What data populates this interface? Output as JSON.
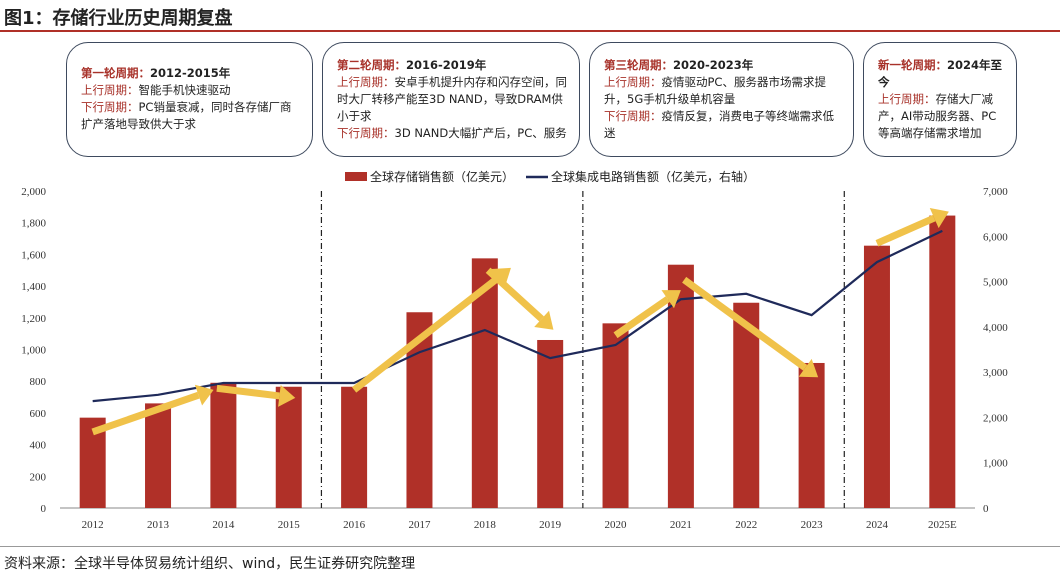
{
  "title": "图1：存储行业历史周期复盘",
  "source": "资料来源：全球半导体贸易统计组织、wind，民生证券研究院整理",
  "boxes": [
    {
      "head": "第一轮周期：",
      "period": "2012-2015年",
      "up_label": "上行周期：",
      "up": "智能手机快速驱动",
      "down_label": "下行周期：",
      "down": "PC销量衰减，同时各存储厂商扩产落地导致供大于求"
    },
    {
      "head": "第二轮周期：",
      "period": "2016-2019年",
      "up_label": "上行周期：",
      "up": "安卓手机提升内存和闪存空间，同时大厂转移产能至3D NAND，导致DRAM供小于求",
      "down_label": "下行周期：",
      "down": "3D NAND大幅扩产后，PC、服务"
    },
    {
      "head": "第三轮周期：",
      "period": "2020-2023年",
      "up_label": "上行周期：",
      "up": "疫情驱动PC、服务器市场需求提升，5G手机升级单机容量",
      "down_label": "下行周期：",
      "down": "疫情反复，消费电子等终端需求低迷"
    },
    {
      "head": "新一轮周期：",
      "period": "2024年至今",
      "up_label": "上行周期：",
      "up": "存储大厂减产，AI带动服务器、PC等高端存储需求增加",
      "down_label": "",
      "down": ""
    }
  ],
  "chart_data": {
    "type": "bar+line",
    "categories": [
      "2012",
      "2013",
      "2014",
      "2015",
      "2016",
      "2017",
      "2018",
      "2019",
      "2020",
      "2021",
      "2022",
      "2023",
      "2024",
      "2025E"
    ],
    "series": [
      {
        "name": "全球存储销售额（亿美元）",
        "type": "bar",
        "axis": "left",
        "color": "#b03028",
        "values": [
          570,
          660,
          790,
          765,
          765,
          1235,
          1575,
          1060,
          1165,
          1535,
          1295,
          915,
          1655,
          1845
        ]
      },
      {
        "name": "全球集成电路销售额（亿美元，右轴）",
        "type": "line",
        "axis": "right",
        "color": "#1f2a5a",
        "values": [
          2360,
          2500,
          2760,
          2760,
          2760,
          3440,
          3930,
          3310,
          3600,
          4610,
          4730,
          4260,
          5430,
          6120
        ]
      }
    ],
    "ylim_left": [
      0,
      2000
    ],
    "yticks_left": [
      "0",
      "200",
      "400",
      "600",
      "800",
      "1,000",
      "1,200",
      "1,400",
      "1,600",
      "1,800",
      "2,000"
    ],
    "ylim_right": [
      0,
      7000
    ],
    "yticks_right": [
      "0",
      "1,000",
      "2,000",
      "3,000",
      "4,000",
      "5,000",
      "6,000",
      "7,000"
    ],
    "grid": false,
    "legend": "top",
    "cycle_dividers_after": [
      "2015",
      "2019",
      "2023"
    ],
    "arrows": [
      {
        "from": [
          0,
          480
        ],
        "to": [
          1.85,
          745
        ]
      },
      {
        "from": [
          1.9,
          755
        ],
        "to": [
          3.1,
          695
        ]
      },
      {
        "from": [
          4,
          745
        ],
        "to": [
          6.4,
          1515
        ]
      },
      {
        "from": [
          6.05,
          1500
        ],
        "to": [
          7.05,
          1125
        ]
      },
      {
        "from": [
          8,
          1090
        ],
        "to": [
          9,
          1375
        ]
      },
      {
        "from": [
          9.05,
          1440
        ],
        "to": [
          11.1,
          825
        ]
      },
      {
        "from": [
          12,
          1670
        ],
        "to": [
          13.1,
          1870
        ]
      }
    ],
    "arrow_color": "#f0c24a"
  }
}
